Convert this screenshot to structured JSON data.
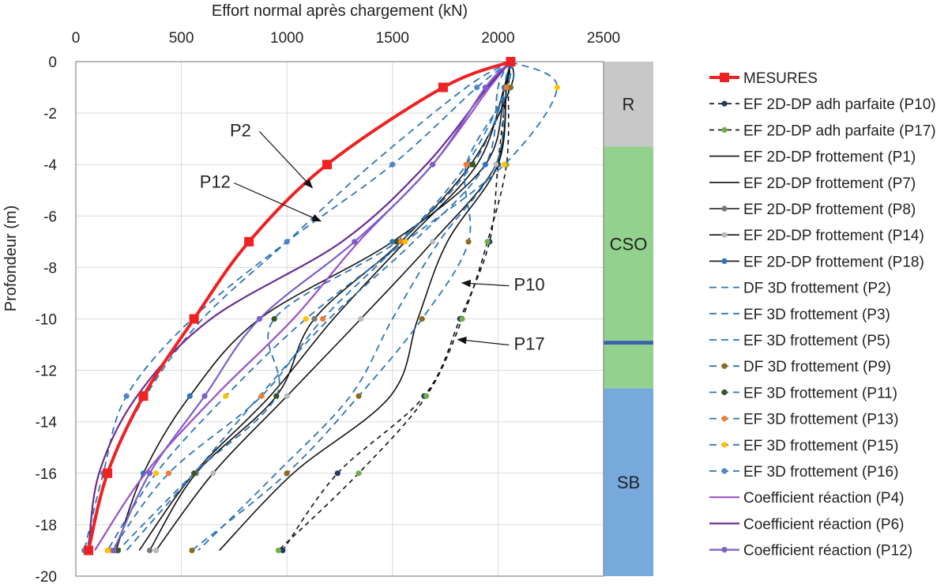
{
  "chart_data": {
    "type": "line",
    "title": "",
    "xlabel": "Effort normal après chargement (kN)",
    "ylabel": "Profondeur (m)",
    "xlim": [
      0,
      2500
    ],
    "ylim": [
      -20,
      0
    ],
    "xticks": [
      "0",
      "500",
      "1000",
      "1500",
      "2000",
      "2500"
    ],
    "yticks": [
      "0",
      "-2",
      "-4",
      "-6",
      "-8",
      "-10",
      "-12",
      "-14",
      "-16",
      "-18",
      "-20"
    ],
    "grid": true,
    "legend_position": "right",
    "series": [
      {
        "name": "MESURES",
        "style": "measure",
        "color": "#ee2222",
        "x": [
          2060,
          1740,
          1190,
          820,
          560,
          320,
          150,
          60
        ],
        "y": [
          0,
          -1,
          -4,
          -7,
          -10,
          -13,
          -16,
          -19
        ]
      },
      {
        "name": "EF 2D-DP adh parfaite (P10)",
        "style": "black-dash",
        "color": "#1f3864",
        "x": [
          2060,
          2040,
          2000,
          1960,
          1820,
          1650,
          1240,
          980
        ],
        "y": [
          0,
          -1,
          -4,
          -7,
          -10,
          -13,
          -16,
          -19
        ]
      },
      {
        "name": "EF 2D-DP adh parfaite (P17)",
        "style": "black-dash",
        "color": "#70ad47",
        "x": [
          2060,
          2050,
          2040,
          1950,
          1830,
          1660,
          1340,
          960
        ],
        "y": [
          0,
          -1,
          -4,
          -7,
          -10,
          -13,
          -16,
          -19
        ]
      },
      {
        "name": "EF 2D-DP frottement (P1)",
        "style": "black",
        "color": "#111111",
        "x": [
          2060,
          2030,
          1900,
          1560,
          1220,
          920,
          560,
          300
        ],
        "y": [
          0,
          -1,
          -4,
          -7,
          -10,
          -13,
          -16,
          -19
        ]
      },
      {
        "name": "EF 2D-DP frottement (P7)",
        "style": "black",
        "color": "#111111",
        "x": [
          2060,
          2040,
          2000,
          1760,
          1620,
          1490,
          1030,
          680
        ],
        "y": [
          0,
          -1,
          -4,
          -7,
          -10,
          -13,
          -16,
          -19
        ]
      },
      {
        "name": "EF 2D-DP frottement (P8)",
        "style": "black-marker",
        "color": "#777777",
        "x": [
          2060,
          2060,
          1870,
          1540,
          1130,
          950,
          570,
          350
        ],
        "y": [
          0,
          -1,
          -4,
          -7,
          -10,
          -13,
          -16,
          -19
        ]
      },
      {
        "name": "EF 2D-DP frottement (P14)",
        "style": "black-marker",
        "color": "#bbbbbb",
        "x": [
          2060,
          2040,
          1990,
          1690,
          1350,
          1000,
          650,
          380
        ],
        "y": [
          0,
          -1,
          -4,
          -7,
          -10,
          -13,
          -16,
          -19
        ]
      },
      {
        "name": "EF 2D-DP frottement (P18)",
        "style": "black-marker",
        "color": "#2e75b6",
        "x": [
          2060,
          2030,
          1940,
          1500,
          870,
          540,
          320,
          190
        ],
        "y": [
          0,
          -1,
          -4,
          -7,
          -10,
          -13,
          -16,
          -19
        ]
      },
      {
        "name": "DF 3D frottement (P2)",
        "style": "blue-dash",
        "color": "#2e75b6",
        "x": [
          2060,
          1850,
          1400,
          1000,
          600,
          330,
          150,
          50
        ],
        "y": [
          0,
          -1,
          -4,
          -7,
          -10,
          -13,
          -16,
          -19
        ]
      },
      {
        "name": "EF 3D frottement (P3)",
        "style": "blue-dash",
        "color": "#2e75b6",
        "x": [
          2060,
          2000,
          1940,
          1600,
          1200,
          870,
          560,
          240
        ],
        "y": [
          0,
          -1,
          -4,
          -7,
          -10,
          -13,
          -16,
          -19
        ]
      },
      {
        "name": "EF 3D frottement (P5)",
        "style": "blue-dash",
        "color": "#2e75b6",
        "x": [
          2060,
          2030,
          1990,
          1720,
          1500,
          1300,
          950,
          580
        ],
        "y": [
          0,
          -1,
          -4,
          -7,
          -10,
          -13,
          -16,
          -19
        ]
      },
      {
        "name": "DF 3D frottement (P9)",
        "style": "blue-dash-marker",
        "color": "#8b6b1e",
        "x": [
          2060,
          2060,
          1850,
          1860,
          1640,
          1340,
          1000,
          550
        ],
        "y": [
          0,
          -1,
          -4,
          -7,
          -10,
          -13,
          -16,
          -19
        ]
      },
      {
        "name": "EF 3D frottement (P11)",
        "style": "blue-dash-marker",
        "color": "#375623",
        "x": [
          2060,
          2040,
          1880,
          1520,
          940,
          950,
          560,
          200
        ],
        "y": [
          0,
          -1,
          -4,
          -7,
          -10,
          -13,
          -16,
          -19
        ]
      },
      {
        "name": "EF 3D frottement (P13)",
        "style": "blue-dash-marker",
        "color": "#ed7d31",
        "x": [
          2060,
          2040,
          1850,
          1540,
          1170,
          880,
          440,
          170
        ],
        "y": [
          0,
          -1,
          -4,
          -7,
          -10,
          -13,
          -16,
          -19
        ]
      },
      {
        "name": "EF 3D frottement (P15)",
        "style": "blue-dash-marker",
        "color": "#ffc000",
        "x": [
          2060,
          2280,
          2030,
          1560,
          1090,
          710,
          380,
          150
        ],
        "y": [
          0,
          -1,
          -4,
          -7,
          -10,
          -13,
          -16,
          -19
        ]
      },
      {
        "name": "EF 3D frottement (P16)",
        "style": "blue-dash-marker",
        "color": "#4a86c8",
        "x": [
          2060,
          1900,
          1500,
          1000,
          550,
          240,
          130,
          40
        ],
        "y": [
          0,
          -1,
          -4,
          -7,
          -10,
          -13,
          -16,
          -19
        ]
      },
      {
        "name": "Coefficient réaction (P4)",
        "style": "purple",
        "color": "#9b4fc7",
        "x": [
          2060,
          1960,
          1690,
          1340,
          1030,
          660,
          330,
          90
        ],
        "y": [
          0,
          -1,
          -4,
          -7,
          -10,
          -13,
          -16,
          -19
        ]
      },
      {
        "name": "Coefficient réaction (P6)",
        "style": "purple",
        "color": "#6a2c91",
        "x": [
          2060,
          1950,
          1660,
          1260,
          640,
          290,
          110,
          60
        ],
        "y": [
          0,
          -1,
          -4,
          -7,
          -10,
          -13,
          -16,
          -19
        ]
      },
      {
        "name": "Coefficient réaction (P12)",
        "style": "purple-marker",
        "color": "#7b5fc9",
        "x": [
          2060,
          1940,
          1690,
          1320,
          870,
          610,
          350,
          180
        ],
        "y": [
          0,
          -1,
          -4,
          -7,
          -10,
          -13,
          -16,
          -19
        ]
      }
    ],
    "annotations": [
      {
        "text": "P2",
        "label_x": 780,
        "label_y": -2.9,
        "target_x": 1120,
        "target_y": -4.9
      },
      {
        "text": "P12",
        "label_x": 660,
        "label_y": -4.9,
        "target_x": 1160,
        "target_y": -6.2
      },
      {
        "text": "P10",
        "label_x": 2180,
        "label_y": -8.9,
        "target_x": 1830,
        "target_y": -8.6
      },
      {
        "text": "P17",
        "label_x": 2180,
        "label_y": -11.2,
        "target_x": 1810,
        "target_y": -10.8
      }
    ],
    "soil_layers": [
      {
        "label": "R",
        "top": 0,
        "bottom": -3.3,
        "color": "#c8c8c8"
      },
      {
        "label": "CSO",
        "top": -3.3,
        "bottom": -10.85,
        "color": "#93d18e"
      },
      {
        "label": "",
        "top": -10.85,
        "bottom": -11.0,
        "color": "#3a5fa8"
      },
      {
        "label": "",
        "top": -11.0,
        "bottom": -12.7,
        "color": "#93d18e"
      },
      {
        "label": "SB",
        "top": -12.7,
        "bottom": -20,
        "color": "#77a9dd"
      }
    ]
  }
}
